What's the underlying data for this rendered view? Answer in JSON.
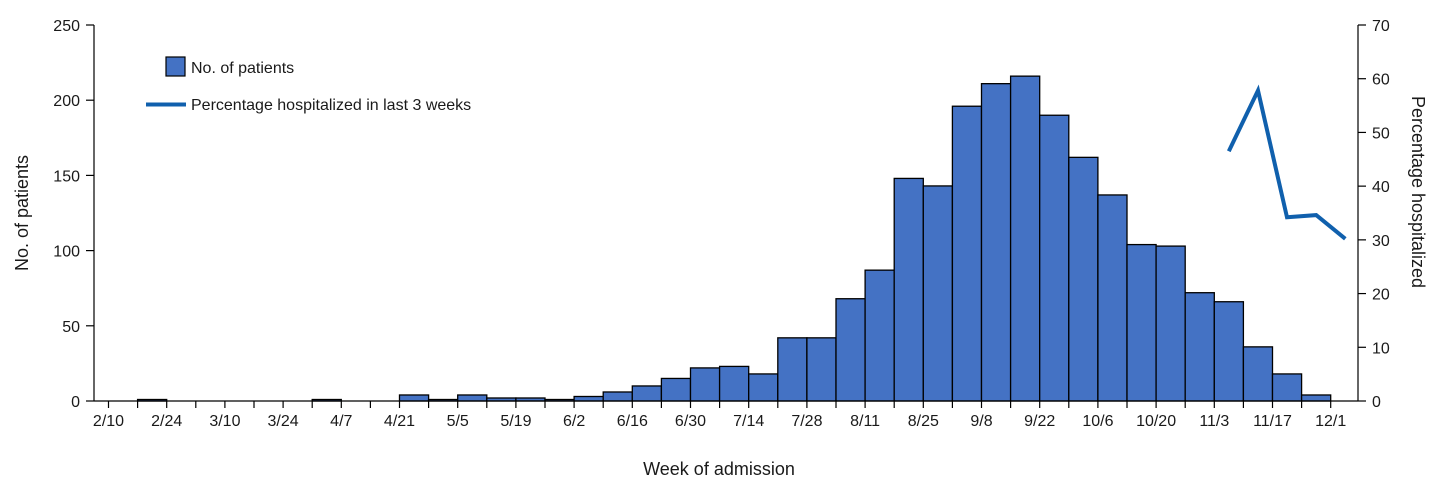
{
  "chart_data": {
    "type": "bar",
    "title": "",
    "xlabel": "Week of admission",
    "ylabel": "No. of patients",
    "y2label": "Percentage hospitalized",
    "ylim": [
      0,
      250
    ],
    "y2lim": [
      0,
      70
    ],
    "yticks": [
      0,
      50,
      100,
      150,
      200,
      250
    ],
    "y2ticks": [
      0,
      10,
      20,
      30,
      40,
      50,
      60,
      70
    ],
    "x_tick_labels": [
      "2/10",
      "2/24",
      "3/10",
      "3/24",
      "4/7",
      "4/21",
      "5/5",
      "5/19",
      "6/2",
      "6/16",
      "6/30",
      "7/14",
      "7/28",
      "8/11",
      "8/25",
      "9/8",
      "9/22",
      "10/6",
      "10/20",
      "11/3",
      "11/17",
      "12/1"
    ],
    "bar_color": "#4472c4",
    "line_color": "#1060ad",
    "legend": {
      "placement": "top-left",
      "bar_label": "No. of patients",
      "line_label": "Percentage hospitalized in last 3 weeks"
    },
    "series": [
      {
        "name": "No. of patients",
        "kind": "bar",
        "axis": "left",
        "values": [
          0,
          1,
          0,
          0,
          0,
          0,
          0,
          1,
          0,
          0,
          4,
          1,
          4,
          2,
          2,
          1,
          3,
          6,
          10,
          15,
          22,
          23,
          18,
          42,
          42,
          68,
          87,
          148,
          143,
          196,
          211,
          216,
          190,
          162,
          137,
          104,
          103,
          72,
          66,
          36,
          18,
          4
        ]
      },
      {
        "name": "Percentage hospitalized in last 3 weeks",
        "kind": "line",
        "axis": "right",
        "points": [
          [
            38,
            46.5
          ],
          [
            39,
            57.8
          ],
          [
            40,
            34.2
          ],
          [
            41,
            34.6
          ],
          [
            42,
            30.2
          ]
        ]
      }
    ]
  }
}
